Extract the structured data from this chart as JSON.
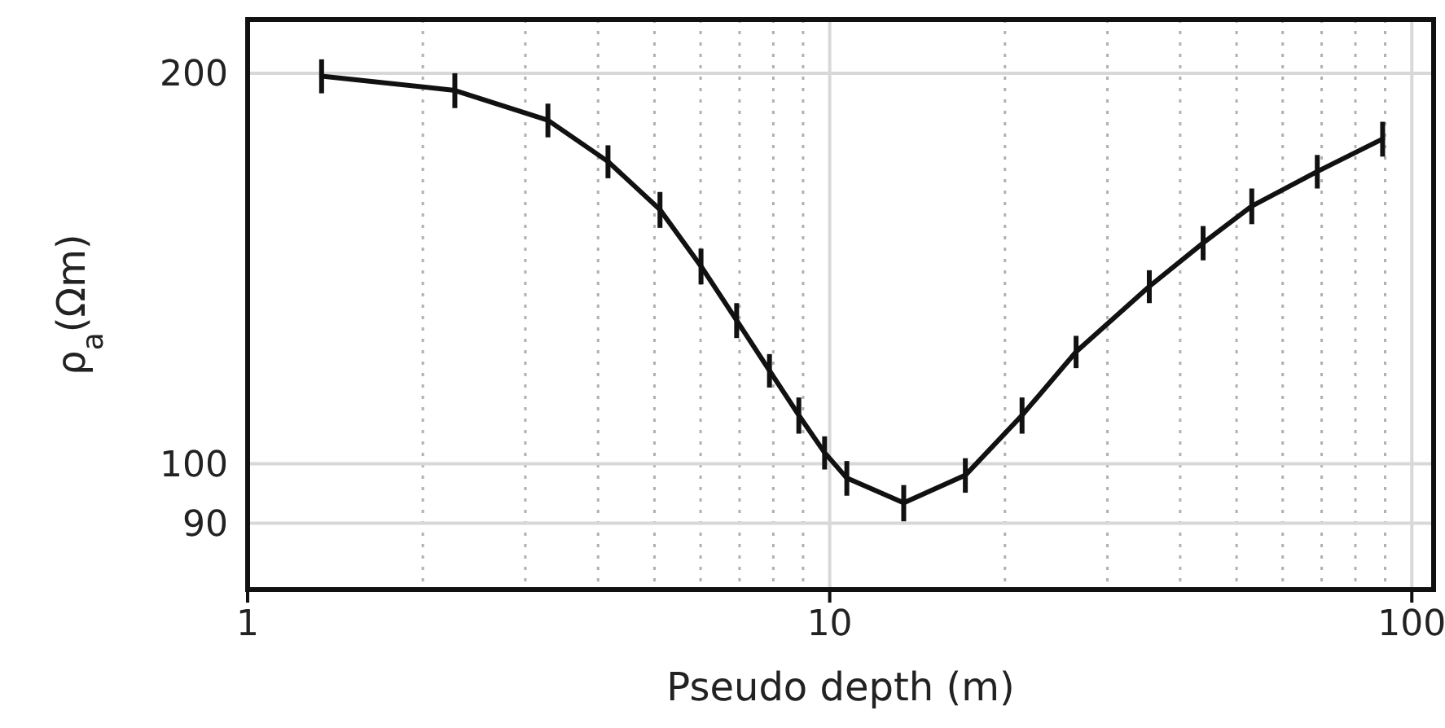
{
  "chart_data": {
    "type": "line",
    "xlabel": "Pseudo depth (m)",
    "ylabel": "ρ$_{a}$(Ωm)",
    "log": "xy",
    "grid": true,
    "marker": "none",
    "line_style": "solid",
    "x": [
      1.34,
      2.27,
      3.28,
      4.16,
      5.11,
      6.01,
      6.92,
      7.88,
      8.85,
      9.8,
      10.7,
      13.4,
      17.1,
      21.4,
      26.5,
      35.4,
      43.8,
      53.1,
      68.8,
      89.1
    ],
    "series": [
      {
        "color": "#111111",
        "values": [
          199,
          194,
          184,
          171,
          157,
          142,
          129,
          118,
          109,
          102,
          97.5,
          93.3,
          98,
          109,
          122,
          137,
          148,
          158,
          168,
          178
        ],
        "errors": [
          6,
          6,
          5.5,
          5,
          5,
          4.5,
          4,
          3.5,
          3.5,
          3,
          3,
          3,
          3,
          3.5,
          3.5,
          4,
          4.5,
          5,
          5,
          5.5
        ]
      }
    ],
    "xlim": [
      1,
      109
    ],
    "ylim": [
      80,
      220
    ],
    "xticks": [
      1,
      {
        "value": 2,
        "label": null
      },
      {
        "value": 3,
        "label": null
      },
      {
        "value": 4,
        "label": null
      },
      {
        "value": 5,
        "label": null
      },
      {
        "value": 6,
        "label": null
      },
      {
        "value": 7,
        "label": null
      },
      {
        "value": 8,
        "label": null
      },
      {
        "value": 9,
        "label": null
      },
      10,
      {
        "value": 20,
        "label": null
      },
      {
        "value": 30,
        "label": null
      },
      {
        "value": 40,
        "label": null
      },
      {
        "value": 50,
        "label": null
      },
      {
        "value": 60,
        "label": null
      },
      {
        "value": 70,
        "label": null
      },
      {
        "value": 80,
        "label": null
      },
      {
        "value": 90,
        "label": null
      },
      100
    ],
    "yticks": [
      90,
      100,
      200
    ]
  }
}
